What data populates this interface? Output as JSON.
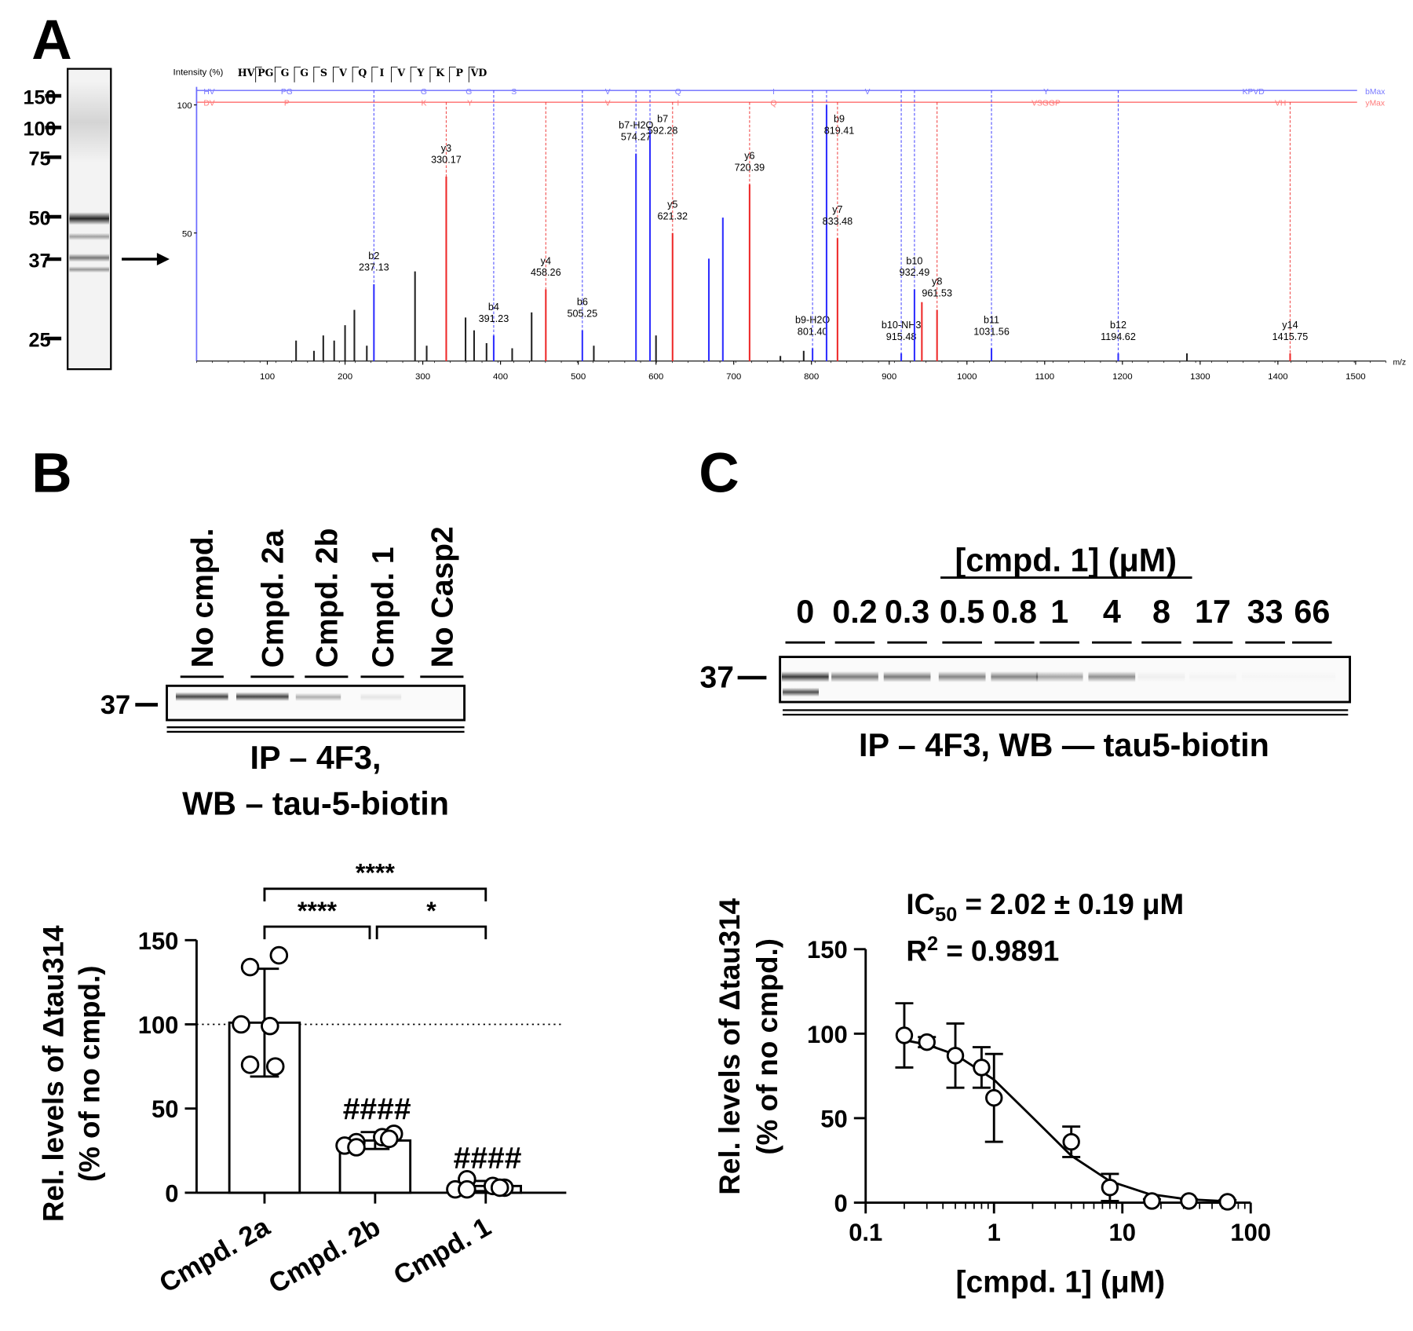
{
  "panel_labels": [
    "A",
    "B",
    "C"
  ],
  "blots": {
    "a": {
      "markers": [
        150,
        100,
        75,
        50,
        37,
        25
      ]
    },
    "b": {
      "lanes": [
        "No cmpd.",
        "Cmpd. 2a",
        "Cmpd. 2b",
        "Cmpd. 1",
        "No Casp2"
      ],
      "marker": "37",
      "caption": [
        "IP – 4F3,",
        "WB – tau-5-biotin"
      ]
    },
    "c": {
      "title": "[cmpd. 1] (μM)",
      "lanes": [
        "0",
        "0.2",
        "0.3",
        "0.5",
        "0.8",
        "1",
        "4",
        "8",
        "17",
        "33",
        "66"
      ],
      "marker": "37",
      "caption": "IP – 4F3, WB — tau5-biotin"
    }
  },
  "chart_data": [
    {
      "type": "spectrum",
      "y_label": "Intensity (%)",
      "x_label": "m/z",
      "sequence": [
        "HV",
        "PG",
        "G",
        "G",
        "S",
        "V",
        "Q",
        "I",
        "V",
        "Y",
        "K",
        "P",
        "VD"
      ],
      "b_ladder": [
        "HV",
        "PG",
        "G",
        "G",
        "S",
        "V",
        "Q",
        "I",
        "V",
        "Y",
        "KPVD"
      ],
      "b_ladder_end": "bMax",
      "y_ladder": [
        "DV",
        "P",
        "K",
        "Y",
        "V",
        "I",
        "Q",
        "VSGGP",
        "VH"
      ],
      "y_ladder_end": "yMax",
      "xlim": [
        9,
        1539
      ],
      "xticks": [
        100,
        200,
        300,
        400,
        500,
        600,
        700,
        800,
        900,
        1000,
        1100,
        1200,
        1300,
        1400,
        1500
      ],
      "ylim": [
        0,
        100
      ],
      "yticks": [
        50,
        100
      ],
      "b_ions": {
        "color": "#2f2fff",
        "mz": [
          237.13,
          391.23,
          505.25,
          574.27,
          592.28,
          668,
          686,
          801.4,
          819.41,
          915.48,
          932.49,
          1031.56,
          1194.62
        ],
        "values": [
          30,
          10,
          12,
          81,
          90,
          40,
          56,
          5,
          100,
          3,
          28,
          5,
          3
        ],
        "names": [
          "b2",
          "b4",
          "b6",
          "b7-H2O",
          "b7",
          null,
          null,
          "b9-H2O",
          "b9",
          "b10-NH3",
          "b10",
          "b11",
          "b12"
        ],
        "mz_labels": [
          "237.13",
          "391.23",
          "505.25",
          "574.27",
          "592.28",
          null,
          null,
          "801.40",
          "819.41",
          "915.48",
          "932.49",
          "1031.56",
          "1194.62"
        ]
      },
      "y_ions": {
        "color": "#ee2a2a",
        "mz": [
          330.17,
          458.26,
          621.32,
          720.39,
          833.48,
          942,
          961.53,
          1415.75
        ],
        "values": [
          72,
          28,
          50,
          69,
          48,
          23,
          20,
          3
        ],
        "names": [
          "y3",
          "y4",
          "y5",
          "y6",
          "y7",
          null,
          "y8",
          "y14"
        ],
        "mz_labels": [
          "330.17",
          "458.26",
          "621.32",
          "720.39",
          "833.48",
          null,
          "961.53",
          "1415.75"
        ]
      },
      "other_peaks": {
        "color": "#222222",
        "mz": [
          137,
          160,
          172,
          186,
          200,
          212,
          228,
          290,
          305,
          355,
          366,
          382,
          415,
          440,
          520,
          600,
          760,
          790,
          1283
        ],
        "values": [
          8,
          4,
          10,
          8,
          14,
          20,
          6,
          35,
          6,
          17,
          12,
          7,
          5,
          19,
          6,
          10,
          2,
          4,
          3
        ]
      }
    },
    {
      "type": "bar",
      "y_label": [
        "Rel. levels of Δtau314",
        "(% of no cmpd.)"
      ],
      "categories": [
        "Cmpd. 2a",
        "Cmpd. 2b",
        "Cmpd. 1"
      ],
      "values": [
        101,
        31,
        4
      ],
      "errors": [
        32,
        5,
        3
      ],
      "points": [
        [
          134,
          141,
          100,
          99,
          76,
          75
        ],
        [
          30,
          35,
          28,
          33,
          27,
          32
        ],
        [
          8,
          3,
          2,
          4,
          2,
          3
        ]
      ],
      "ylim": [
        0,
        150
      ],
      "yticks": [
        0,
        50,
        100,
        150
      ],
      "reference_line": 100,
      "comparisons": [
        {
          "from": 0,
          "to": 2,
          "label": "****"
        },
        {
          "from": 0,
          "to": 1,
          "label": "****"
        },
        {
          "from": 1,
          "to": 2,
          "label": "*"
        }
      ],
      "value_annotations": [
        null,
        "####",
        "####"
      ]
    },
    {
      "type": "dose_response",
      "y_label": [
        "Rel. levels of Δtau314",
        "(% of no cmpd.)"
      ],
      "x_label": "[cmpd. 1] (μM)",
      "x": [
        0.2,
        0.3,
        0.5,
        0.8,
        1,
        4,
        8,
        17,
        33,
        66
      ],
      "values": [
        99,
        95,
        87,
        80,
        62,
        36,
        9,
        1,
        1,
        0.5
      ],
      "errors": [
        19,
        3,
        19,
        12,
        26,
        9,
        8,
        1,
        1,
        1
      ],
      "fit": {
        "x": [
          0.2,
          0.3,
          0.5,
          1,
          2,
          4,
          8,
          16,
          32,
          70
        ],
        "values": [
          96.2,
          93.5,
          87.6,
          72.8,
          50.4,
          27.8,
          12.7,
          5.2,
          2.0,
          0.7
        ]
      },
      "log_x": true,
      "xlim": [
        0.1,
        100
      ],
      "xticks": [
        0.1,
        1,
        10,
        100
      ],
      "ylim": [
        0,
        150
      ],
      "yticks": [
        0,
        50,
        100,
        150
      ],
      "annotations": [
        [
          "IC",
          "50",
          " = 2.02 ± 0.19 μM"
        ],
        [
          "R",
          "2",
          " = 0.9891"
        ]
      ]
    }
  ]
}
